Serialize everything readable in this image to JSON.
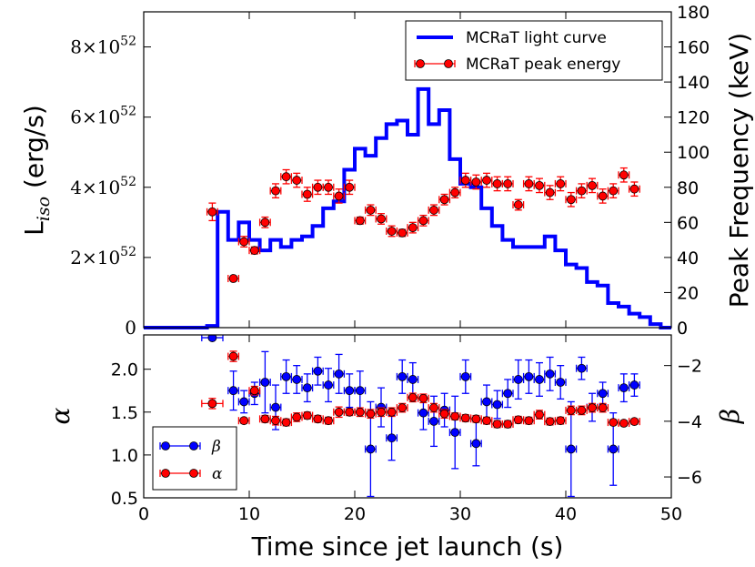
{
  "chart_data": [
    {
      "type": "line",
      "panel": "top",
      "xlabel": "Time since jet launch (s)",
      "xlim": [
        0,
        50
      ],
      "x_ticks": [
        "0",
        "10",
        "20",
        "30",
        "40",
        "50"
      ],
      "ylabel_left": {
        "base": "L",
        "sub": "iso",
        "unit": " (erg/s)"
      },
      "ylim_left": [
        0,
        9
      ],
      "y_ticks_left": [
        {
          "value": 0,
          "mant": "0",
          "exp": ""
        },
        {
          "value": 2,
          "mant": "2",
          "exp": "52"
        },
        {
          "value": 4,
          "mant": "4",
          "exp": "52"
        },
        {
          "value": 6,
          "mant": "6",
          "exp": "52"
        },
        {
          "value": 8,
          "mant": "8",
          "exp": "52"
        }
      ],
      "times_symbol": "×10",
      "ylabel_right": "Peak Frequency (keV)",
      "ylim_right": [
        0,
        180
      ],
      "y_ticks_right": [
        "0",
        "20",
        "40",
        "60",
        "80",
        "100",
        "120",
        "140",
        "160",
        "180"
      ],
      "legend_position": "top-right",
      "series": [
        {
          "name": "MCRaT light curve",
          "color": "#0000ff",
          "axis": "left",
          "units": "1e52 erg/s",
          "step_edges": [
            0,
            1,
            2,
            3,
            4,
            5,
            6,
            7,
            8,
            9,
            10,
            11,
            12,
            13,
            14,
            15,
            16,
            17,
            18,
            19,
            20,
            21,
            22,
            23,
            24,
            25,
            26,
            27,
            28,
            29,
            30,
            31,
            32,
            33,
            34,
            35,
            36,
            37,
            38,
            39,
            40,
            41,
            42,
            43,
            44,
            45,
            46,
            47,
            48,
            49,
            50
          ],
          "step_values": [
            0,
            0,
            0,
            0,
            0,
            0,
            0.05,
            3.3,
            2.5,
            3.0,
            2.5,
            2.2,
            2.5,
            2.3,
            2.5,
            2.6,
            2.9,
            3.4,
            3.6,
            4.5,
            5.1,
            4.9,
            5.4,
            5.8,
            5.9,
            5.5,
            6.8,
            5.8,
            6.2,
            4.8,
            4.1,
            4.0,
            3.4,
            2.9,
            2.5,
            2.3,
            2.3,
            2.3,
            2.6,
            2.2,
            1.8,
            1.7,
            1.3,
            1.2,
            0.7,
            0.6,
            0.4,
            0.3,
            0.1,
            0.0
          ]
        },
        {
          "name": "MCRaT peak energy",
          "color": "#ff0000",
          "axis": "right",
          "units": "keV",
          "x": [
            6.5,
            8.5,
            9.5,
            10.5,
            11.5,
            12.5,
            13.5,
            14.5,
            15.5,
            16.5,
            17.5,
            18.5,
            19.5,
            20.5,
            21.5,
            22.5,
            23.5,
            24.5,
            25.5,
            26.5,
            27.5,
            28.5,
            29.5,
            30.5,
            31.5,
            32.5,
            33.5,
            34.5,
            35.5,
            36.5,
            37.5,
            38.5,
            39.5,
            40.5,
            41.5,
            42.5,
            43.5,
            44.5,
            45.5,
            46.5
          ],
          "y": [
            66,
            28,
            49,
            44,
            60,
            78,
            86,
            84,
            76,
            80,
            80,
            75,
            80,
            61,
            67,
            62,
            55,
            54,
            57,
            61,
            67,
            73,
            77,
            84,
            83,
            84,
            82,
            82,
            70,
            82,
            81,
            77,
            82,
            73,
            78,
            81,
            75,
            78,
            87,
            79
          ],
          "xerr": 0.5,
          "yerr": [
            5,
            1,
            3,
            2,
            3,
            4,
            4,
            4,
            4,
            4,
            4,
            4,
            4,
            2,
            3,
            3,
            3,
            2,
            3,
            3,
            3,
            3,
            3,
            4,
            4,
            4,
            4,
            4,
            3,
            4,
            4,
            4,
            4,
            4,
            4,
            4,
            4,
            4,
            4,
            4
          ]
        }
      ]
    },
    {
      "type": "scatter",
      "panel": "bottom",
      "xlabel": "Time since jet launch (s)",
      "xlim": [
        0,
        50
      ],
      "x_ticks": [
        "0",
        "10",
        "20",
        "30",
        "40",
        "50"
      ],
      "ylabel_left": "α",
      "ylim_left": [
        0.5,
        2.4
      ],
      "y_ticks_left": [
        "0.5",
        "1.0",
        "1.5",
        "2.0"
      ],
      "ylabel_right": "β",
      "ylim_right": [
        -6.75,
        -0.9
      ],
      "y_ticks_right": [
        "−6",
        "−4",
        "−2"
      ],
      "legend_position": "bottom-left",
      "series": [
        {
          "name": "β",
          "color": "#0000ff",
          "axis": "right",
          "x": [
            6.5,
            8.5,
            9.5,
            10.5,
            11.5,
            12.5,
            13.5,
            14.5,
            15.5,
            16.5,
            17.5,
            18.5,
            19.5,
            20.5,
            21.5,
            22.5,
            23.5,
            24.5,
            25.5,
            26.5,
            27.5,
            28.5,
            29.5,
            30.5,
            31.5,
            32.5,
            33.5,
            34.5,
            35.5,
            36.5,
            37.5,
            38.5,
            39.5,
            40.5,
            41.5,
            42.5,
            43.5,
            44.5,
            45.5,
            46.5
          ],
          "y": [
            -1.0,
            -2.9,
            -3.3,
            -3.0,
            -2.6,
            -3.5,
            -2.4,
            -2.5,
            -2.8,
            -2.2,
            -2.7,
            -2.3,
            -2.9,
            -2.9,
            -5.0,
            -3.5,
            -4.6,
            -2.4,
            -2.5,
            -3.7,
            -4.0,
            -3.6,
            -4.4,
            -2.4,
            -4.8,
            -3.3,
            -3.4,
            -3.0,
            -2.5,
            -2.4,
            -2.5,
            -2.3,
            -2.6,
            -5.0,
            -2.1,
            -3.5,
            -3.0,
            -5.0,
            -2.8,
            -2.7
          ],
          "xerr": [
            1,
            0.5,
            0.5,
            0.5,
            0.5,
            0.5,
            0.5,
            0.5,
            0.5,
            0.5,
            0.5,
            0.5,
            0.5,
            0.5,
            0.5,
            0.5,
            0.5,
            0.5,
            0.5,
            0.5,
            0.5,
            0.5,
            0.5,
            0.5,
            0.5,
            0.5,
            0.5,
            0.5,
            0.5,
            0.5,
            0.5,
            0.5,
            0.5,
            0.5,
            0.5,
            0.5,
            0.5,
            0.5,
            0.5,
            0.5
          ],
          "yerr": [
            0,
            0.7,
            0.4,
            0.4,
            1.1,
            0.8,
            0.6,
            0.5,
            0.5,
            0.5,
            0.6,
            0.7,
            0.6,
            0.7,
            1.7,
            0.7,
            0.8,
            0.6,
            0.6,
            0.6,
            0.9,
            0.6,
            1.3,
            0.6,
            0.8,
            0.6,
            0.5,
            0.5,
            0.7,
            0.6,
            0.6,
            0.6,
            0.6,
            1.7,
            0.4,
            0.5,
            0.4,
            1.3,
            0.5,
            0.4
          ]
        },
        {
          "name": "α",
          "color": "#ff0000",
          "axis": "left",
          "x": [
            6.5,
            8.5,
            9.5,
            10.5,
            11.5,
            12.5,
            13.5,
            14.5,
            15.5,
            16.5,
            17.5,
            18.5,
            19.5,
            20.5,
            21.5,
            22.5,
            23.5,
            24.5,
            25.5,
            26.5,
            27.5,
            28.5,
            29.5,
            30.5,
            31.5,
            32.5,
            33.5,
            34.5,
            35.5,
            36.5,
            37.5,
            38.5,
            39.5,
            40.5,
            41.5,
            42.5,
            43.5,
            44.5,
            45.5,
            46.5
          ],
          "y": [
            1.6,
            2.15,
            1.4,
            1.75,
            1.42,
            1.4,
            1.38,
            1.44,
            1.46,
            1.42,
            1.4,
            1.5,
            1.5,
            1.5,
            1.48,
            1.5,
            1.5,
            1.55,
            1.67,
            1.66,
            1.55,
            1.48,
            1.45,
            1.43,
            1.42,
            1.4,
            1.36,
            1.36,
            1.41,
            1.4,
            1.47,
            1.39,
            1.4,
            1.52,
            1.52,
            1.55,
            1.55,
            1.38,
            1.37,
            1.39
          ],
          "xerr": [
            1,
            0.5,
            0.5,
            0.5,
            0.5,
            0.5,
            0.5,
            0.5,
            0.5,
            0.5,
            0.5,
            0.5,
            0.5,
            0.5,
            0.5,
            0.5,
            0.5,
            0.5,
            0.5,
            0.5,
            0.5,
            0.5,
            0.5,
            0.5,
            0.5,
            0.5,
            0.5,
            0.5,
            0.5,
            0.5,
            0.5,
            0.5,
            0.5,
            0.5,
            0.5,
            0.5,
            0.5,
            0.5,
            0.5,
            0.5
          ],
          "yerr": [
            0.06,
            0.06,
            0.03,
            0.05,
            0.04,
            0.05,
            0.04,
            0.05,
            0.04,
            0.04,
            0.04,
            0.06,
            0.04,
            0.05,
            0.05,
            0.05,
            0.05,
            0.05,
            0.05,
            0.05,
            0.05,
            0.05,
            0.04,
            0.04,
            0.04,
            0.04,
            0.04,
            0.04,
            0.04,
            0.04,
            0.05,
            0.04,
            0.04,
            0.05,
            0.05,
            0.05,
            0.05,
            0.03,
            0.03,
            0.03
          ]
        }
      ]
    }
  ]
}
